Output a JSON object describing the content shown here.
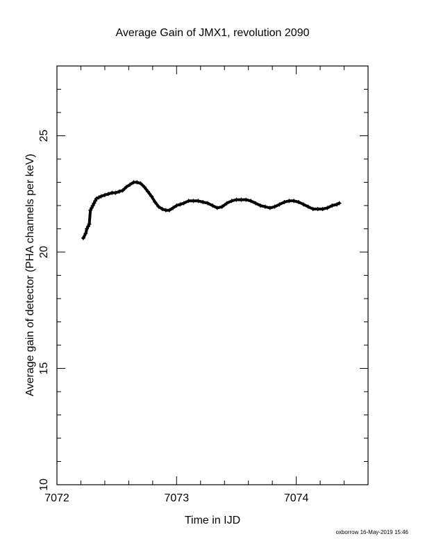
{
  "chart_data": {
    "type": "scatter",
    "title": "Average Gain of JMX1, revolution 2090",
    "xlabel": "Time in IJD",
    "ylabel": "Average gain of detector (PHA channels per keV)",
    "xlim": [
      7072,
      7074.6
    ],
    "ylim": [
      10,
      28
    ],
    "x_ticks": [
      7072,
      7073,
      7074
    ],
    "x_tick_labels": [
      "7072",
      "7073",
      "7074"
    ],
    "y_ticks": [
      10,
      15,
      20,
      25
    ],
    "y_tick_labels": [
      "10",
      "15",
      "20",
      "25"
    ],
    "x_minor_step": 0.2,
    "y_minor_step": 1,
    "grid": false,
    "marker": "+",
    "color": "#000000",
    "series": [
      {
        "x": [
          7072.22,
          7072.24,
          7072.25,
          7072.26,
          7072.27,
          7072.28,
          7072.29,
          7072.3,
          7072.31,
          7072.32,
          7072.33,
          7072.35,
          7072.37,
          7072.4,
          7072.43,
          7072.46,
          7072.49,
          7072.52,
          7072.55,
          7072.58,
          7072.61,
          7072.64,
          7072.67,
          7072.7,
          7072.73,
          7072.76,
          7072.79,
          7072.82,
          7072.85,
          7072.88,
          7072.91,
          7072.94,
          7072.97,
          7073.0,
          7073.03,
          7073.06,
          7073.1,
          7073.14,
          7073.18,
          7073.22,
          7073.26,
          7073.3,
          7073.34,
          7073.38,
          7073.42,
          7073.46,
          7073.5,
          7073.54,
          7073.58,
          7073.62,
          7073.66,
          7073.7,
          7073.74,
          7073.78,
          7073.82,
          7073.86,
          7073.9,
          7073.94,
          7073.98,
          7074.02,
          7074.06,
          7074.1,
          7074.14,
          7074.18,
          7074.22,
          7074.26,
          7074.3,
          7074.34,
          7074.36
        ],
        "y": [
          20.6,
          20.8,
          21.0,
          21.1,
          21.2,
          21.8,
          21.9,
          22.0,
          22.1,
          22.2,
          22.3,
          22.35,
          22.4,
          22.45,
          22.5,
          22.55,
          22.55,
          22.6,
          22.65,
          22.8,
          22.9,
          23.0,
          23.0,
          22.95,
          22.8,
          22.6,
          22.4,
          22.15,
          21.95,
          21.85,
          21.8,
          21.8,
          21.9,
          22.0,
          22.05,
          22.1,
          22.2,
          22.2,
          22.2,
          22.15,
          22.1,
          22.0,
          21.9,
          21.95,
          22.1,
          22.2,
          22.25,
          22.25,
          22.25,
          22.2,
          22.1,
          22.0,
          21.95,
          21.9,
          21.95,
          22.05,
          22.15,
          22.2,
          22.2,
          22.15,
          22.05,
          21.95,
          21.85,
          21.85,
          21.85,
          21.9,
          22.0,
          22.05,
          22.1
        ]
      }
    ]
  },
  "footer": {
    "credit": "oxborrow 16-May-2019 15:46"
  }
}
